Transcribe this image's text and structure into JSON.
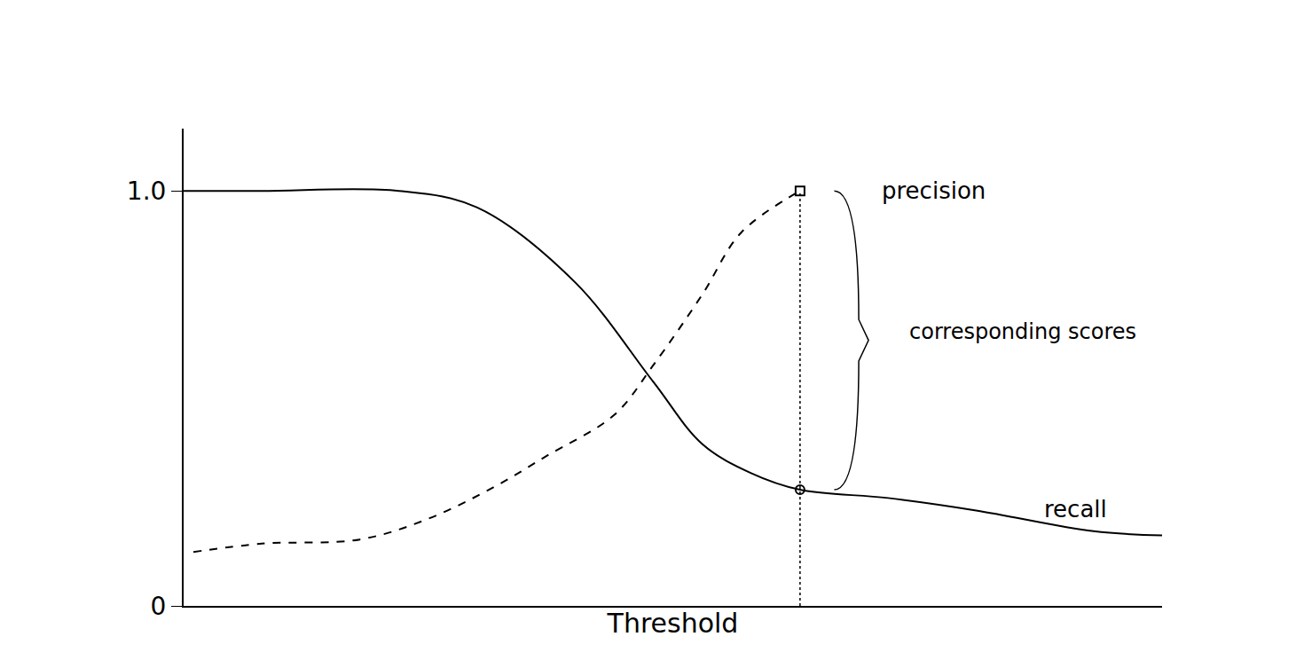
{
  "chart_data": {
    "type": "line",
    "xlabel": "Threshold",
    "xlim": [
      0,
      1
    ],
    "ylim": [
      0,
      1.15
    ],
    "yticks": [
      0,
      {
        "value": 1,
        "label": "1.0"
      }
    ],
    "tick_labels": "y",
    "grid": false,
    "series": [
      {
        "name": "precision",
        "color": "#000000",
        "line_style": "dashed",
        "marker": "square",
        "x": [
          0.01,
          0.08,
          0.18,
          0.25,
          0.32,
          0.37,
          0.44,
          0.48,
          0.53,
          0.57,
          0.63
        ],
        "values": [
          0.13,
          0.15,
          0.16,
          0.21,
          0.29,
          0.36,
          0.46,
          0.58,
          0.75,
          0.9,
          1.0
        ]
      },
      {
        "name": "recall",
        "color": "#000000",
        "line_style": "solid",
        "marker": "circle",
        "x": [
          0.0,
          0.08,
          0.22,
          0.3,
          0.4,
          0.48,
          0.53,
          0.58,
          0.63,
          0.72,
          0.81,
          0.93,
          1.0
        ],
        "values": [
          1.0,
          1.0,
          1.0,
          0.96,
          0.78,
          0.54,
          0.39,
          0.32,
          0.28,
          0.26,
          0.23,
          0.18,
          0.17
        ]
      }
    ],
    "annotations": [
      {
        "text": "corresponding scores",
        "x": 0.74,
        "y": 0.66
      }
    ]
  }
}
